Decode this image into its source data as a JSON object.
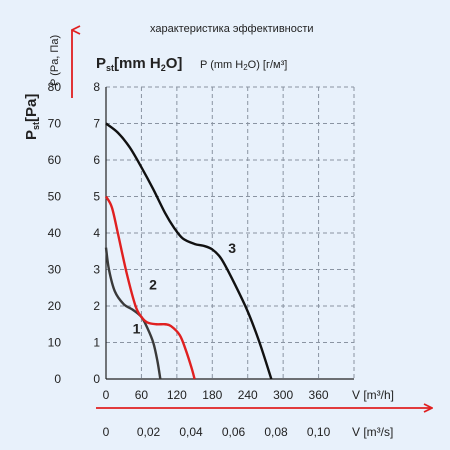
{
  "chart_data": {
    "type": "line",
    "title": "характеристика эффективности",
    "left_axis": {
      "label_main": "P",
      "label_sub": "st",
      "label_unit": "[Pa]",
      "ticks": [
        0,
        10,
        20,
        30,
        40,
        50,
        60,
        70,
        80
      ],
      "range": [
        0,
        80
      ]
    },
    "right_axis_header": {
      "label_main": "P",
      "label_sub": "st",
      "label_unit": "[mm H",
      "label_sub2": "2",
      "label_unit_end": "O]",
      "alt_text": "P (mm H",
      "alt_sub": "2",
      "alt_end": "O) [г/м³]"
    },
    "top_axis_label": "P (Pa, Па)",
    "inner_y_axis": {
      "ticks": [
        0,
        1,
        2,
        3,
        4,
        5,
        6,
        7,
        8
      ],
      "range": [
        0,
        8
      ]
    },
    "x_axis_m3h": {
      "label": "V [m³/h]",
      "ticks": [
        0,
        60,
        120,
        180,
        240,
        300,
        360
      ],
      "range": [
        0,
        420
      ]
    },
    "x_axis_m3s": {
      "label": "V [m³/s]",
      "ticks": [
        "0",
        "0,02",
        "0,04",
        "0,06",
        "0,08",
        "0,10"
      ]
    },
    "grid": true,
    "colors": {
      "background": "#e8f1fb",
      "red": "#e02020",
      "dark": "#3a3a3a",
      "black": "#111111"
    },
    "series": [
      {
        "name": "1",
        "color": "#3a3a3a",
        "points": [
          [
            0,
            3.6
          ],
          [
            5,
            3.0
          ],
          [
            15,
            2.4
          ],
          [
            30,
            2.05
          ],
          [
            45,
            1.9
          ],
          [
            60,
            1.7
          ],
          [
            70,
            1.4
          ],
          [
            80,
            1.0
          ],
          [
            87,
            0.5
          ],
          [
            92,
            0
          ]
        ],
        "label_at": [
          45,
          1.25
        ]
      },
      {
        "name": "2",
        "color": "#e02020",
        "points": [
          [
            0,
            5.0
          ],
          [
            10,
            4.7
          ],
          [
            20,
            4.0
          ],
          [
            35,
            2.9
          ],
          [
            50,
            2.0
          ],
          [
            60,
            1.7
          ],
          [
            70,
            1.55
          ],
          [
            85,
            1.5
          ],
          [
            100,
            1.5
          ],
          [
            110,
            1.45
          ],
          [
            125,
            1.2
          ],
          [
            135,
            0.8
          ],
          [
            145,
            0.3
          ],
          [
            150,
            0
          ]
        ],
        "label_at": [
          73,
          2.45
        ]
      },
      {
        "name": "3",
        "color": "#111111",
        "points": [
          [
            0,
            7.0
          ],
          [
            20,
            6.75
          ],
          [
            40,
            6.35
          ],
          [
            60,
            5.8
          ],
          [
            80,
            5.2
          ],
          [
            100,
            4.55
          ],
          [
            115,
            4.15
          ],
          [
            130,
            3.85
          ],
          [
            150,
            3.7
          ],
          [
            165,
            3.65
          ],
          [
            180,
            3.55
          ],
          [
            195,
            3.3
          ],
          [
            215,
            2.7
          ],
          [
            240,
            1.85
          ],
          [
            260,
            1.0
          ],
          [
            280,
            0
          ]
        ],
        "label_at": [
          207,
          3.45
        ]
      }
    ]
  }
}
